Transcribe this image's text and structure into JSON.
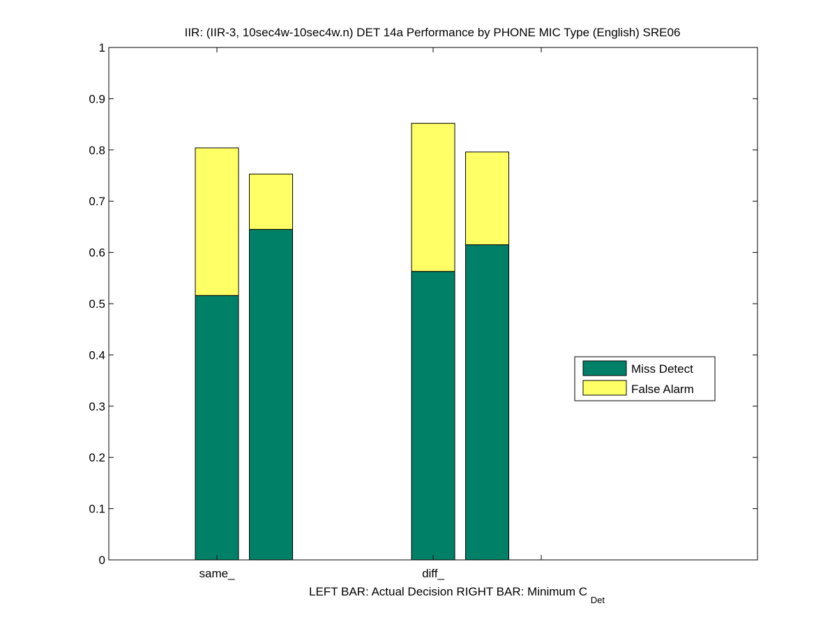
{
  "chart_data": {
    "type": "bar",
    "stacked": true,
    "title": "IIR: (IIR-3, 10sec4w-10sec4w.n) DET 14a Performance by PHONE MIC Type (English) SRE06",
    "xlabel_left": "LEFT BAR: Actual Decision",
    "xlabel_right_prefix": "RIGHT BAR: Minimum C",
    "xlabel_right_sub": "Det",
    "categories": [
      "same_",
      "diff_"
    ],
    "bars": [
      {
        "category": "same_",
        "position": "left",
        "miss": 0.516,
        "false_alarm": 0.288
      },
      {
        "category": "same_",
        "position": "right",
        "miss": 0.645,
        "false_alarm": 0.108
      },
      {
        "category": "diff_",
        "position": "left",
        "miss": 0.563,
        "false_alarm": 0.289
      },
      {
        "category": "diff_",
        "position": "right",
        "miss": 0.615,
        "false_alarm": 0.181
      }
    ],
    "series": [
      {
        "name": "Miss Detect",
        "color": "#008066"
      },
      {
        "name": "False Alarm",
        "color": "#ffff66"
      }
    ],
    "ylim": [
      0,
      1
    ],
    "yticks": [
      "0",
      "0.1",
      "0.2",
      "0.3",
      "0.4",
      "0.5",
      "0.6",
      "0.7",
      "0.8",
      "0.9",
      "1"
    ],
    "xlim": [
      0,
      6
    ],
    "xticks_at": [
      1,
      3,
      4
    ],
    "grid": false,
    "legend_position": "right-middle"
  }
}
